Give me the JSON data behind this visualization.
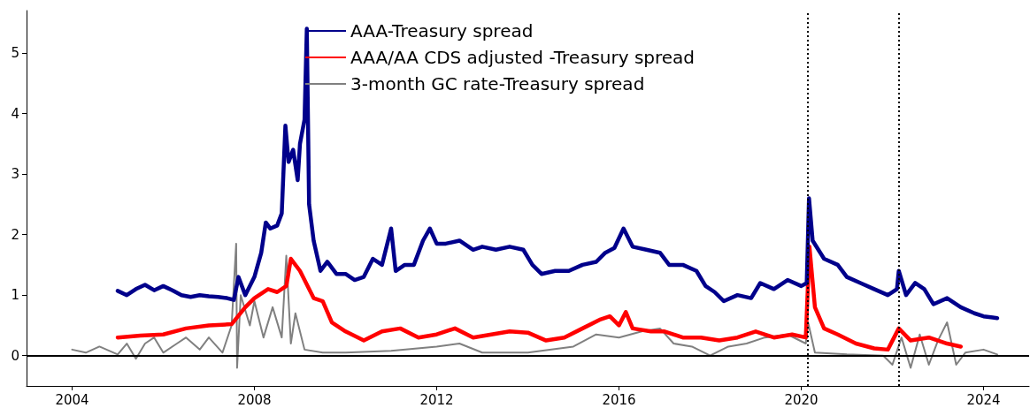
{
  "chart_data": {
    "type": "line",
    "xlim": [
      2003,
      2025
    ],
    "xticks": [
      2004,
      2008,
      2012,
      2016,
      2020,
      2024
    ],
    "ylim": [
      -0.5,
      5.7
    ],
    "yticks": [
      0,
      1,
      2,
      3,
      4,
      5
    ],
    "grid": false,
    "legend": "top",
    "marker": "none",
    "line_style": "solid",
    "series": [
      {
        "name": "AAA-Treasury spread",
        "color": "#00008b",
        "x": [
          2005.0,
          2005.2,
          2005.4,
          2005.6,
          2005.8,
          2006.0,
          2006.2,
          2006.4,
          2006.6,
          2006.8,
          2007.0,
          2007.2,
          2007.4,
          2007.55,
          2007.65,
          2007.8,
          2008.0,
          2008.15,
          2008.25,
          2008.35,
          2008.5,
          2008.6,
          2008.68,
          2008.75,
          2008.85,
          2008.95,
          2009.0,
          2009.1,
          2009.15,
          2009.2,
          2009.3,
          2009.45,
          2009.6,
          2009.8,
          2010.0,
          2010.2,
          2010.4,
          2010.6,
          2010.8,
          2011.0,
          2011.1,
          2011.3,
          2011.5,
          2011.7,
          2011.85,
          2012.0,
          2012.2,
          2012.5,
          2012.8,
          2013.0,
          2013.3,
          2013.6,
          2013.9,
          2014.1,
          2014.3,
          2014.6,
          2014.9,
          2015.2,
          2015.5,
          2015.7,
          2015.9,
          2016.1,
          2016.3,
          2016.6,
          2016.9,
          2017.1,
          2017.4,
          2017.7,
          2017.9,
          2018.1,
          2018.3,
          2018.6,
          2018.9,
          2019.1,
          2019.4,
          2019.7,
          2020.0,
          2020.12,
          2020.17,
          2020.25,
          2020.5,
          2020.8,
          2021.0,
          2021.3,
          2021.6,
          2021.9,
          2022.1,
          2022.14,
          2022.3,
          2022.5,
          2022.7,
          2022.9,
          2023.2,
          2023.5,
          2023.8,
          2024.0,
          2024.2,
          2024.3
        ],
        "values": [
          1.07,
          1.0,
          1.1,
          1.17,
          1.08,
          1.15,
          1.08,
          1.0,
          0.97,
          1.0,
          0.98,
          0.97,
          0.95,
          0.92,
          1.3,
          1.0,
          1.3,
          1.7,
          2.2,
          2.1,
          2.15,
          2.35,
          3.8,
          3.2,
          3.4,
          2.9,
          3.5,
          3.9,
          5.4,
          2.5,
          1.9,
          1.4,
          1.55,
          1.35,
          1.35,
          1.25,
          1.3,
          1.6,
          1.5,
          2.1,
          1.4,
          1.5,
          1.5,
          1.9,
          2.1,
          1.85,
          1.85,
          1.9,
          1.75,
          1.8,
          1.75,
          1.8,
          1.75,
          1.5,
          1.35,
          1.4,
          1.4,
          1.5,
          1.55,
          1.7,
          1.78,
          2.1,
          1.8,
          1.75,
          1.7,
          1.5,
          1.5,
          1.4,
          1.15,
          1.05,
          0.9,
          1.0,
          0.95,
          1.2,
          1.1,
          1.25,
          1.15,
          1.2,
          2.6,
          1.9,
          1.6,
          1.5,
          1.3,
          1.2,
          1.1,
          1.0,
          1.1,
          1.4,
          1.0,
          1.2,
          1.1,
          0.85,
          0.95,
          0.8,
          0.7,
          0.65,
          0.63,
          0.62
        ]
      },
      {
        "name": "AAA/AA CDS adjusted -Treasury spread",
        "color": "#ff0000",
        "x": [
          2005.0,
          2005.5,
          2006.0,
          2006.5,
          2007.0,
          2007.5,
          2007.8,
          2008.0,
          2008.3,
          2008.5,
          2008.7,
          2008.8,
          2009.0,
          2009.3,
          2009.5,
          2009.7,
          2010.0,
          2010.4,
          2010.8,
          2011.2,
          2011.6,
          2012.0,
          2012.4,
          2012.8,
          2013.2,
          2013.6,
          2014.0,
          2014.4,
          2014.8,
          2015.2,
          2015.6,
          2015.8,
          2016.0,
          2016.15,
          2016.3,
          2016.7,
          2017.0,
          2017.4,
          2017.8,
          2018.2,
          2018.6,
          2019.0,
          2019.4,
          2019.8,
          2020.1,
          2020.18,
          2020.3,
          2020.5,
          2020.8,
          2021.2,
          2021.6,
          2021.9,
          2022.14,
          2022.4,
          2022.8,
          2023.2,
          2023.5
        ],
        "values": [
          0.3,
          0.33,
          0.35,
          0.45,
          0.5,
          0.52,
          0.8,
          0.95,
          1.1,
          1.05,
          1.15,
          1.6,
          1.4,
          0.95,
          0.9,
          0.55,
          0.4,
          0.25,
          0.4,
          0.45,
          0.3,
          0.35,
          0.45,
          0.3,
          0.35,
          0.4,
          0.38,
          0.25,
          0.3,
          0.45,
          0.6,
          0.65,
          0.5,
          0.72,
          0.45,
          0.4,
          0.4,
          0.3,
          0.3,
          0.25,
          0.3,
          0.4,
          0.3,
          0.35,
          0.3,
          1.8,
          0.8,
          0.45,
          0.35,
          0.2,
          0.12,
          0.1,
          0.45,
          0.25,
          0.3,
          0.2,
          0.15
        ]
      },
      {
        "name": "3-month GC rate-Treasury spread",
        "color": "#808080",
        "x": [
          2004.0,
          2004.3,
          2004.6,
          2005.0,
          2005.2,
          2005.4,
          2005.6,
          2005.8,
          2006.0,
          2006.3,
          2006.5,
          2006.8,
          2007.0,
          2007.3,
          2007.5,
          2007.6,
          2007.62,
          2007.7,
          2007.9,
          2008.0,
          2008.2,
          2008.4,
          2008.6,
          2008.7,
          2008.8,
          2008.9,
          2009.1,
          2009.5,
          2010.0,
          2011.0,
          2012.0,
          2012.5,
          2013.0,
          2014.0,
          2015.0,
          2015.5,
          2016.0,
          2016.5,
          2016.9,
          2017.2,
          2017.6,
          2018.0,
          2018.4,
          2018.8,
          2019.2,
          2019.7,
          2020.1,
          2020.15,
          2020.3,
          2021.0,
          2021.8,
          2022.0,
          2022.2,
          2022.4,
          2022.6,
          2022.8,
          2023.0,
          2023.2,
          2023.4,
          2023.6,
          2024.0,
          2024.3
        ],
        "values": [
          0.1,
          0.05,
          0.15,
          0.02,
          0.2,
          -0.05,
          0.2,
          0.3,
          0.05,
          0.2,
          0.3,
          0.1,
          0.3,
          0.05,
          0.5,
          1.85,
          -0.2,
          1.0,
          0.5,
          0.9,
          0.3,
          0.8,
          0.3,
          1.65,
          0.2,
          0.7,
          0.1,
          0.05,
          0.05,
          0.08,
          0.15,
          0.2,
          0.05,
          0.05,
          0.15,
          0.35,
          0.3,
          0.4,
          0.45,
          0.2,
          0.15,
          0.0,
          0.15,
          0.2,
          0.3,
          0.35,
          0.2,
          0.55,
          0.05,
          0.02,
          0.0,
          -0.15,
          0.3,
          -0.2,
          0.35,
          -0.15,
          0.25,
          0.55,
          -0.15,
          0.05,
          0.1,
          0.02
        ]
      }
    ],
    "ref_lines": [
      {
        "axis": "y",
        "value": 0,
        "color": "#000000",
        "line_style": "solid"
      },
      {
        "axis": "x",
        "value": 2020.15,
        "color": "#000000",
        "line_style": "dotted"
      },
      {
        "axis": "x",
        "value": 2022.15,
        "color": "#000000",
        "line_style": "dotted"
      }
    ]
  }
}
